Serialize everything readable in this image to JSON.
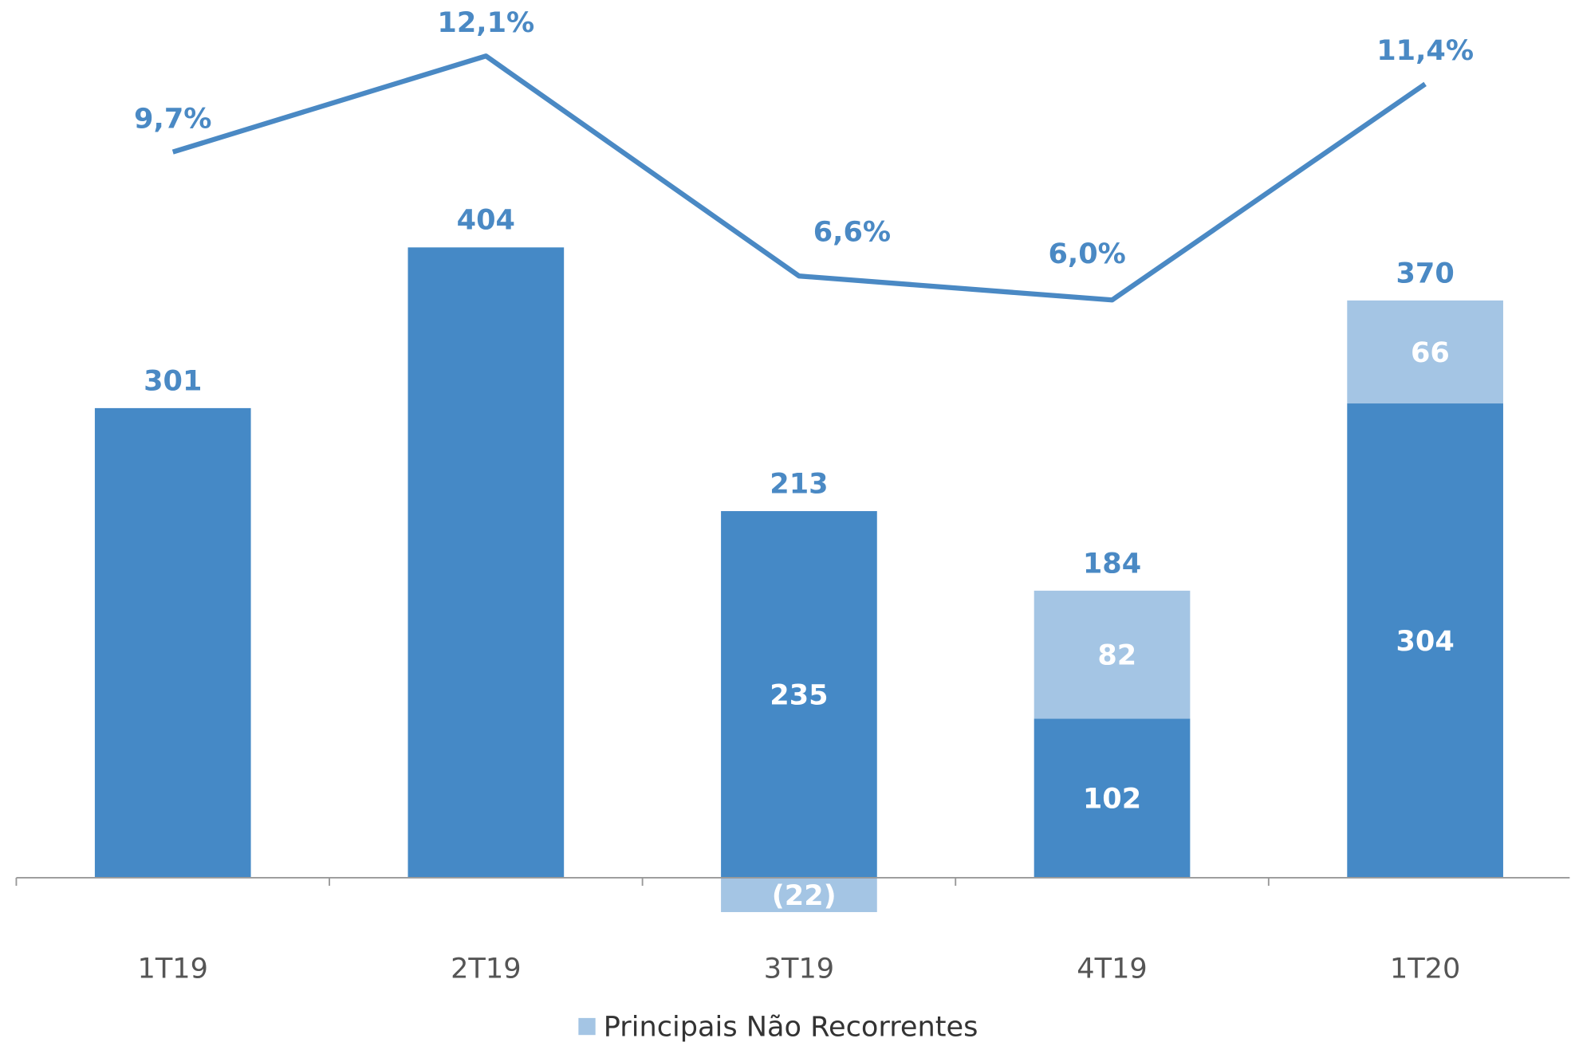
{
  "chart_data": {
    "type": "bar",
    "categories": [
      "1T19",
      "2T19",
      "3T19",
      "4T19",
      "1T20"
    ],
    "series": [
      {
        "color": "#4589c6",
        "values": [
          301,
          404,
          235,
          102,
          304
        ]
      },
      {
        "name": "Principais Não Recorrentes",
        "color": "#a4c5e4",
        "values": [
          null,
          null,
          -22,
          82,
          66
        ],
        "value_labels": [
          null,
          null,
          "(22)",
          "82",
          "66"
        ]
      },
      {
        "type": "line",
        "axis": "y2",
        "color": "#4a89c4",
        "values": [
          9.7,
          12.1,
          6.6,
          6.0,
          11.4
        ],
        "value_labels": [
          "9,7%",
          "12,1%",
          "6,6%",
          "6,0%",
          "11,4%"
        ]
      }
    ],
    "totals": [
      301,
      404,
      213,
      184,
      370
    ],
    "ylim": [
      -120,
      560
    ],
    "y2lim": [
      -13.125,
      13.4
    ],
    "legend": "bottom"
  }
}
